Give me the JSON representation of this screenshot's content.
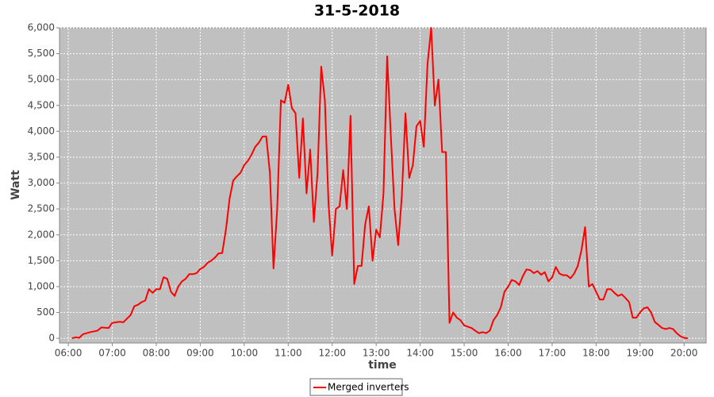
{
  "chart_data": {
    "type": "line",
    "title": "31-5-2018",
    "x_label": "time",
    "y_label": "Watt",
    "x": [
      "06:05",
      "06:10",
      "06:15",
      "06:20",
      "06:30",
      "06:40",
      "06:45",
      "06:55",
      "07:00",
      "07:10",
      "07:15",
      "07:25",
      "07:30",
      "07:35",
      "07:40",
      "07:45",
      "07:50",
      "07:55",
      "08:00",
      "08:05",
      "08:10",
      "08:15",
      "08:20",
      "08:25",
      "08:30",
      "08:35",
      "08:40",
      "08:45",
      "08:50",
      "08:55",
      "09:00",
      "09:05",
      "09:10",
      "09:15",
      "09:20",
      "09:25",
      "09:30",
      "09:35",
      "09:40",
      "09:45",
      "09:50",
      "09:55",
      "10:00",
      "10:05",
      "10:10",
      "10:15",
      "10:20",
      "10:25",
      "10:30",
      "10:35",
      "10:40",
      "10:45",
      "10:50",
      "10:55",
      "11:00",
      "11:05",
      "11:10",
      "11:15",
      "11:20",
      "11:25",
      "11:30",
      "11:35",
      "11:40",
      "11:45",
      "11:50",
      "11:55",
      "12:00",
      "12:05",
      "12:10",
      "12:15",
      "12:20",
      "12:25",
      "12:30",
      "12:35",
      "12:40",
      "12:45",
      "12:50",
      "12:55",
      "13:00",
      "13:05",
      "13:10",
      "13:15",
      "13:20",
      "13:25",
      "13:30",
      "13:35",
      "13:40",
      "13:45",
      "13:50",
      "13:55",
      "14:00",
      "14:05",
      "14:10",
      "14:15",
      "14:20",
      "14:25",
      "14:30",
      "14:35",
      "14:40",
      "14:45",
      "14:50",
      "14:55",
      "15:00",
      "15:10",
      "15:20",
      "15:25",
      "15:30",
      "15:35",
      "15:40",
      "15:45",
      "15:50",
      "15:55",
      "16:00",
      "16:05",
      "16:10",
      "16:15",
      "16:20",
      "16:25",
      "16:30",
      "16:35",
      "16:40",
      "16:45",
      "16:50",
      "16:55",
      "17:00",
      "17:05",
      "17:10",
      "17:15",
      "17:20",
      "17:25",
      "17:30",
      "17:35",
      "17:40",
      "17:45",
      "17:50",
      "17:55",
      "18:00",
      "18:05",
      "18:10",
      "18:15",
      "18:20",
      "18:25",
      "18:30",
      "18:35",
      "18:40",
      "18:45",
      "18:50",
      "18:55",
      "19:00",
      "19:05",
      "19:10",
      "19:15",
      "19:20",
      "19:25",
      "19:30",
      "19:35",
      "19:40",
      "19:45",
      "19:50",
      "19:55",
      "20:00",
      "20:05"
    ],
    "series": [
      {
        "name": "Merged inverters",
        "color": "#ff0000",
        "values": [
          0,
          20,
          10,
          80,
          120,
          150,
          210,
          200,
          300,
          320,
          310,
          450,
          620,
          650,
          700,
          730,
          950,
          880,
          950,
          950,
          1180,
          1150,
          900,
          820,
          1000,
          1100,
          1150,
          1240,
          1240,
          1260,
          1340,
          1380,
          1460,
          1500,
          1560,
          1640,
          1650,
          2100,
          2700,
          3050,
          3130,
          3200,
          3350,
          3430,
          3550,
          3700,
          3780,
          3900,
          3900,
          3200,
          1350,
          2500,
          4600,
          4550,
          4900,
          4450,
          4350,
          3100,
          4250,
          2800,
          3650,
          2250,
          3200,
          5250,
          4600,
          2600,
          1600,
          2500,
          2550,
          3250,
          2500,
          4300,
          1050,
          1400,
          1400,
          2200,
          2550,
          1500,
          2100,
          1950,
          2800,
          5450,
          3900,
          2500,
          1800,
          2750,
          4350,
          3100,
          3350,
          4100,
          4200,
          3700,
          5300,
          6000,
          4500,
          5000,
          3600,
          3600,
          300,
          500,
          400,
          350,
          250,
          200,
          100,
          120,
          100,
          150,
          350,
          450,
          600,
          900,
          1000,
          1130,
          1100,
          1030,
          1200,
          1330,
          1320,
          1260,
          1300,
          1230,
          1280,
          1100,
          1180,
          1380,
          1250,
          1220,
          1220,
          1160,
          1250,
          1400,
          1700,
          2150,
          1000,
          1050,
          900,
          750,
          750,
          950,
          950,
          880,
          820,
          850,
          780,
          700,
          400,
          400,
          500,
          580,
          600,
          500,
          320,
          260,
          200,
          180,
          200,
          180,
          100,
          40,
          10,
          0
        ]
      }
    ],
    "xlim": [
      "05:48",
      "20:30"
    ],
    "xticks": [
      "06:00",
      "07:00",
      "08:00",
      "09:00",
      "10:00",
      "11:00",
      "12:00",
      "13:00",
      "14:00",
      "15:00",
      "16:00",
      "17:00",
      "18:00",
      "19:00",
      "20:00"
    ],
    "ylim": [
      -90,
      6000
    ],
    "yticks": [
      0,
      500,
      {
        "value": 1000,
        "label": "1,000"
      },
      {
        "value": 1500,
        "label": "1,500"
      },
      {
        "value": 2000,
        "label": "2,000"
      },
      {
        "value": 2500,
        "label": "2,500"
      },
      {
        "value": 3000,
        "label": "3,000"
      },
      {
        "value": 3500,
        "label": "3,500"
      },
      {
        "value": 4000,
        "label": "4,000"
      },
      {
        "value": 4500,
        "label": "4,500"
      },
      {
        "value": 5000,
        "label": "5,000"
      },
      {
        "value": 5500,
        "label": "5,500"
      },
      {
        "value": 6000,
        "label": "6,000"
      }
    ],
    "grid": true,
    "legend": "bottom"
  }
}
